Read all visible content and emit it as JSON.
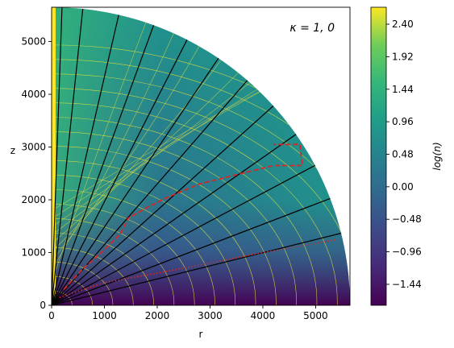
{
  "chart_data": {
    "type": "heatmap",
    "annotation": "κ = 1, 0",
    "xlabel": "r",
    "ylabel": "z",
    "xlim": [
      0,
      5650
    ],
    "ylim": [
      0,
      5650
    ],
    "x_ticks": [
      "0",
      "1000",
      "2000",
      "3000",
      "4000",
      "5000"
    ],
    "y_ticks": [
      "0",
      "1000",
      "2000",
      "3000",
      "4000",
      "5000"
    ],
    "colorbar": {
      "label": "log(n)",
      "range": [
        -1.75,
        2.65
      ],
      "ticks": [
        "2.40",
        "1.92",
        "1.44",
        "0.96",
        "0.48",
        "0.00",
        "−0.48",
        "−0.96",
        "−1.44"
      ],
      "colormap": "viridis"
    },
    "field_lines_angles_deg": [
      14,
      21,
      28,
      35,
      42,
      49,
      56,
      63,
      70,
      77,
      84,
      88
    ],
    "red_dashed_curve": [
      [
        230,
        300
      ],
      [
        600,
        700
      ],
      [
        1000,
        1050
      ],
      [
        1300,
        1350
      ],
      [
        1450,
        1650
      ],
      [
        1800,
        1850
      ],
      [
        2200,
        2050
      ],
      [
        2800,
        2300
      ],
      [
        3600,
        2500
      ],
      [
        4200,
        2650
      ],
      [
        4750,
        2650
      ],
      [
        4700,
        3050
      ],
      [
        4200,
        3050
      ]
    ],
    "red_dotted_curve": [
      [
        150,
        150
      ],
      [
        1000,
        430
      ],
      [
        2000,
        610
      ],
      [
        3000,
        800
      ],
      [
        4000,
        1000
      ],
      [
        5000,
        1170
      ],
      [
        5400,
        1250
      ]
    ]
  }
}
